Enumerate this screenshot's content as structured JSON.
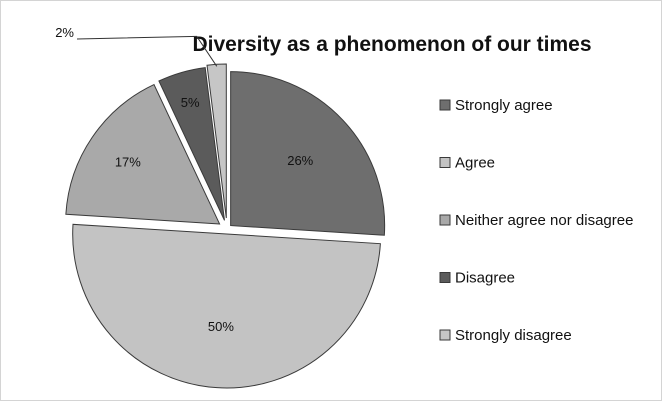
{
  "chart_data": {
    "type": "pie",
    "title": "Diversity as a phenomenon of our times",
    "categories": [
      "Strongly agree",
      "Agree",
      "Neither agree nor disagree",
      "Disagree",
      "Strongly disagree"
    ],
    "values": [
      26,
      50,
      17,
      5,
      2
    ],
    "labels": [
      "26%",
      "50%",
      "17%",
      "5%",
      "2%"
    ],
    "colors": [
      "#6e6e6e",
      "#c3c3c3",
      "#a9a9a9",
      "#5b5b5b",
      "#c6c6c6"
    ],
    "legend_position": "right",
    "exploded": true
  }
}
